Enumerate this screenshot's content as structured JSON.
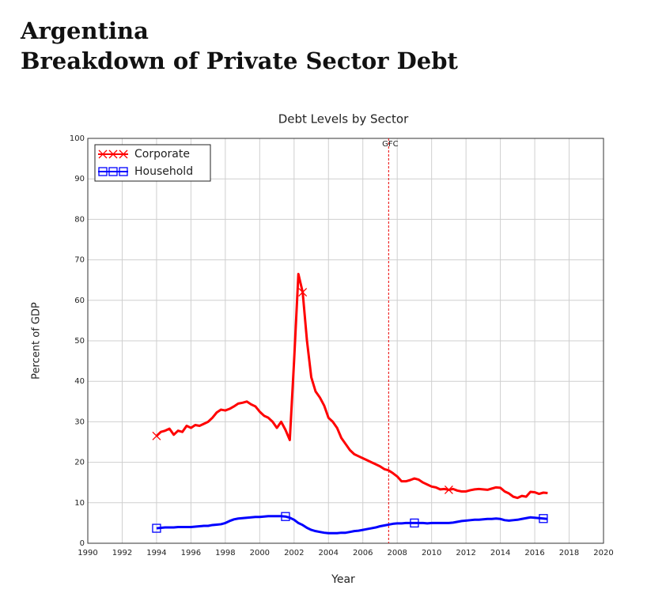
{
  "header": {
    "title_lines": [
      "Argentina",
      "Breakdown of Private Sector Debt"
    ]
  },
  "chart_data": {
    "type": "line",
    "title": "Debt Levels by Sector",
    "x_label": "Year",
    "y_label": "Percent of GDP",
    "x": [
      1994,
      1994.25,
      1994.5,
      1994.75,
      1995,
      1995.25,
      1995.5,
      1995.75,
      1996,
      1996.25,
      1996.5,
      1996.75,
      1997,
      1997.25,
      1997.5,
      1997.75,
      1998,
      1998.25,
      1998.5,
      1998.75,
      1999,
      1999.25,
      1999.5,
      1999.75,
      2000,
      2000.25,
      2000.5,
      2000.75,
      2001,
      2001.25,
      2001.5,
      2001.75,
      2002,
      2002.25,
      2002.5,
      2002.75,
      2003,
      2003.25,
      2003.5,
      2003.75,
      2004,
      2004.25,
      2004.5,
      2004.75,
      2005,
      2005.25,
      2005.5,
      2005.75,
      2006,
      2006.25,
      2006.5,
      2006.75,
      2007,
      2007.25,
      2007.5,
      2007.75,
      2008,
      2008.25,
      2008.5,
      2008.75,
      2009,
      2009.25,
      2009.5,
      2009.75,
      2010,
      2010.25,
      2010.5,
      2010.75,
      2011,
      2011.25,
      2011.5,
      2011.75,
      2012,
      2012.25,
      2012.5,
      2012.75,
      2013,
      2013.25,
      2013.5,
      2013.75,
      2014,
      2014.25,
      2014.5,
      2014.75,
      2015,
      2015.25,
      2015.5,
      2015.75,
      2016,
      2016.25,
      2016.5,
      2016.75
    ],
    "series": [
      {
        "name": "Corporate",
        "color": "#ff0000",
        "marker": "x",
        "values": [
          26.5,
          27.5,
          27.8,
          28.3,
          26.8,
          27.8,
          27.5,
          29,
          28.5,
          29.2,
          29,
          29.5,
          30,
          31,
          32.3,
          33,
          32.8,
          33.2,
          33.8,
          34.5,
          34.7,
          35,
          34.3,
          33.8,
          32.5,
          31.5,
          31,
          30,
          28.5,
          30,
          28,
          25.5,
          45,
          66.5,
          62,
          50,
          41,
          37.5,
          36,
          34,
          31,
          30,
          28.5,
          26,
          24.5,
          23,
          22,
          21.5,
          21,
          20.5,
          20,
          19.5,
          19,
          18.3,
          18,
          17.3,
          16.5,
          15.3,
          15.3,
          15.6,
          16,
          15.7,
          15,
          14.5,
          14,
          13.8,
          13.3,
          13.4,
          13.2,
          13.4,
          13,
          12.8,
          12.8,
          13.1,
          13.3,
          13.4,
          13.3,
          13.2,
          13.5,
          13.8,
          13.7,
          12.8,
          12.3,
          11.5,
          11.2,
          11.7,
          11.5,
          12.7,
          12.6,
          12.2,
          12.5,
          12.4
        ]
      },
      {
        "name": "Household",
        "color": "#0000ff",
        "marker": "square",
        "values": [
          3.7,
          3.8,
          3.9,
          3.9,
          3.9,
          4.0,
          4.0,
          4.0,
          4.0,
          4.1,
          4.2,
          4.3,
          4.3,
          4.5,
          4.6,
          4.7,
          5.0,
          5.5,
          5.9,
          6.1,
          6.2,
          6.3,
          6.4,
          6.5,
          6.5,
          6.6,
          6.7,
          6.7,
          6.7,
          6.7,
          6.6,
          6.3,
          5.8,
          5.0,
          4.5,
          3.8,
          3.3,
          3.0,
          2.8,
          2.6,
          2.5,
          2.5,
          2.5,
          2.6,
          2.6,
          2.8,
          3.0,
          3.1,
          3.3,
          3.5,
          3.7,
          3.9,
          4.2,
          4.4,
          4.6,
          4.8,
          4.9,
          4.9,
          5.0,
          5.0,
          5.0,
          5.0,
          5.0,
          4.9,
          5.0,
          5.0,
          5.0,
          5.0,
          5.0,
          5.1,
          5.3,
          5.5,
          5.6,
          5.7,
          5.8,
          5.8,
          5.9,
          6.0,
          6.0,
          6.1,
          6.0,
          5.7,
          5.6,
          5.7,
          5.8,
          6.0,
          6.2,
          6.4,
          6.3,
          6.2,
          6.1,
          6.0
        ]
      }
    ],
    "annotations": [
      {
        "text": "GFC",
        "x": 2007.5
      }
    ],
    "xlim": [
      1990,
      2020
    ],
    "xticks": [
      1990,
      1992,
      1994,
      1996,
      1998,
      2000,
      2002,
      2004,
      2006,
      2008,
      2010,
      2012,
      2014,
      2016,
      2018,
      2020
    ],
    "ylim": [
      0,
      100
    ],
    "yticks": [
      0,
      10,
      20,
      30,
      40,
      50,
      60,
      70,
      80,
      90,
      100
    ],
    "grid": true,
    "legend": "upper left"
  }
}
